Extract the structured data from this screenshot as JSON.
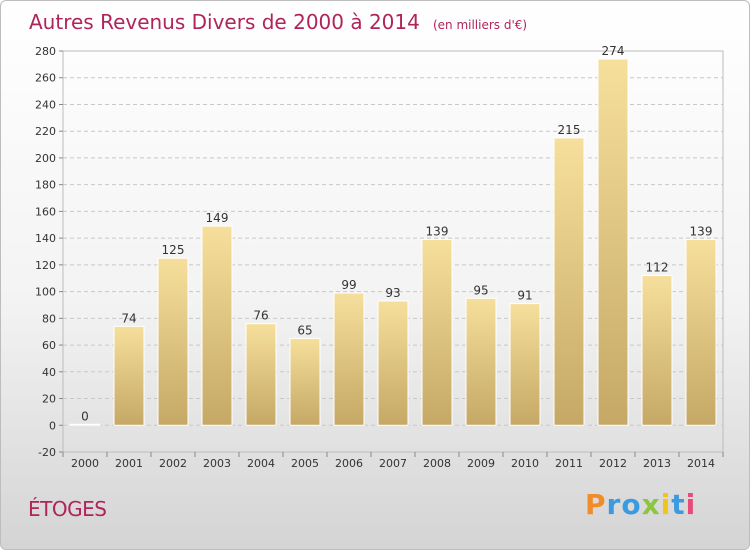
{
  "chart_data": {
    "type": "bar",
    "title": "Autres Revenus Divers de 2000 à 2014",
    "subtitle": "(en milliers d'€)",
    "categories": [
      "2000",
      "2001",
      "2002",
      "2003",
      "2004",
      "2005",
      "2006",
      "2007",
      "2008",
      "2009",
      "2010",
      "2011",
      "2012",
      "2013",
      "2014"
    ],
    "values": [
      0,
      74,
      125,
      149,
      76,
      65,
      99,
      93,
      139,
      95,
      91,
      215,
      274,
      112,
      139
    ],
    "ylim": [
      -20,
      280
    ],
    "yticks": [
      -20,
      0,
      20,
      40,
      60,
      80,
      100,
      120,
      140,
      160,
      180,
      200,
      220,
      240,
      260,
      280
    ],
    "grid": true,
    "colors": {
      "bar_top": "#f6df9c",
      "bar_bottom": "#c5a865",
      "grid": "#c8c8c8",
      "text": "#333333",
      "title": "#b0245a"
    }
  },
  "place": "ÉTOGES",
  "logo": {
    "letters": [
      {
        "char": "P",
        "color": "#f08c2a"
      },
      {
        "char": "r",
        "color": "#3c9be0"
      },
      {
        "char": "o",
        "color": "#3c9be0"
      },
      {
        "char": "x",
        "color": "#8cc63f"
      },
      {
        "char": "i",
        "color": "#f0c419"
      },
      {
        "char": "t",
        "color": "#3c9be0"
      },
      {
        "char": "i",
        "color": "#e84b7a"
      }
    ]
  }
}
